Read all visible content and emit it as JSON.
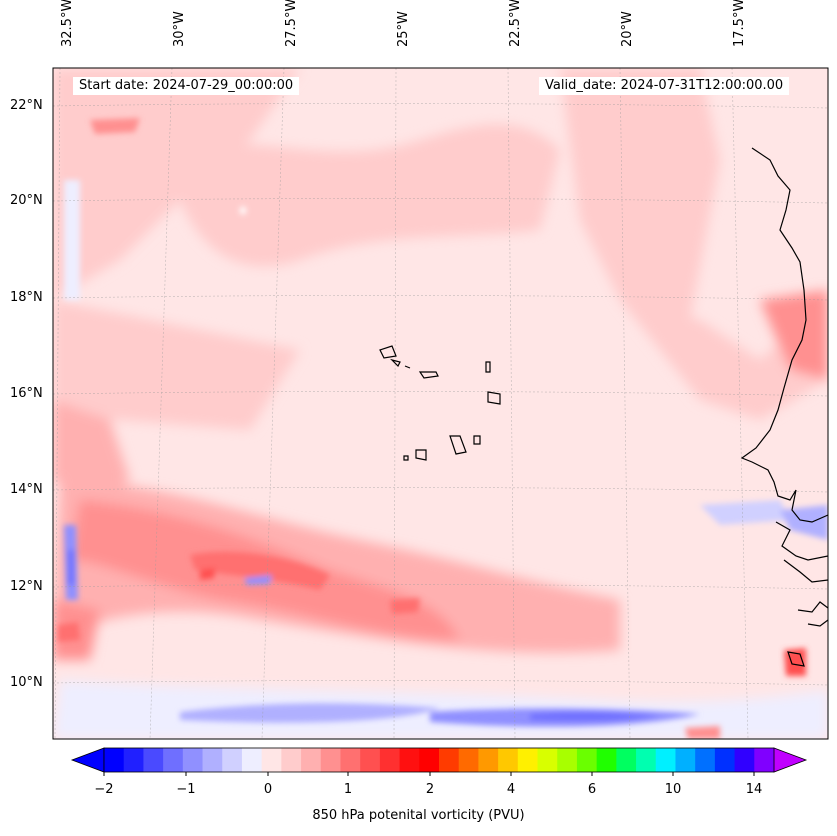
{
  "header": {
    "start_date": "Start date: 2024-07-29_00:00:00",
    "valid_date": "Valid_date: 2024-07-31T12:00:00.00"
  },
  "map": {
    "longitude_labels": [
      "32.5°W",
      "30°W",
      "27.5°W",
      "25°W",
      "22.5°W",
      "20°W",
      "17.5°W"
    ],
    "latitude_labels": [
      "22°N",
      "20°N",
      "18°N",
      "16°N",
      "14°N",
      "12°N",
      "10°N"
    ],
    "region": "Cape Verde / West African coast",
    "colors": {
      "land_outline": "#000000",
      "grid": "#999999"
    }
  },
  "colorbar": {
    "label": "850 hPa potenital vorticity (PVU)",
    "tick_labels": [
      "−2",
      "−1",
      "0",
      "1",
      "2",
      "4",
      "6",
      "10",
      "14"
    ],
    "colors": [
      "#0000ff",
      "#2020ff",
      "#4a4aff",
      "#6f6fff",
      "#9090ff",
      "#b0b0ff",
      "#d0d0ff",
      "#eeeeff",
      "#ffe6e6",
      "#ffcccc",
      "#ffb0b0",
      "#ff9090",
      "#ff7070",
      "#ff5050",
      "#ff3030",
      "#ff1010",
      "#ff0000",
      "#ff3b00",
      "#ff6a00",
      "#ff9900",
      "#ffc800",
      "#fff000",
      "#d8ff00",
      "#a8ff00",
      "#6aff00",
      "#20ff00",
      "#00ff60",
      "#00ffb0",
      "#00f0ff",
      "#00b0ff",
      "#0070ff",
      "#0030ff",
      "#3000ff",
      "#8000ff"
    ],
    "extend_min_color": "#0000ff",
    "extend_max_color": "#c000ff"
  }
}
